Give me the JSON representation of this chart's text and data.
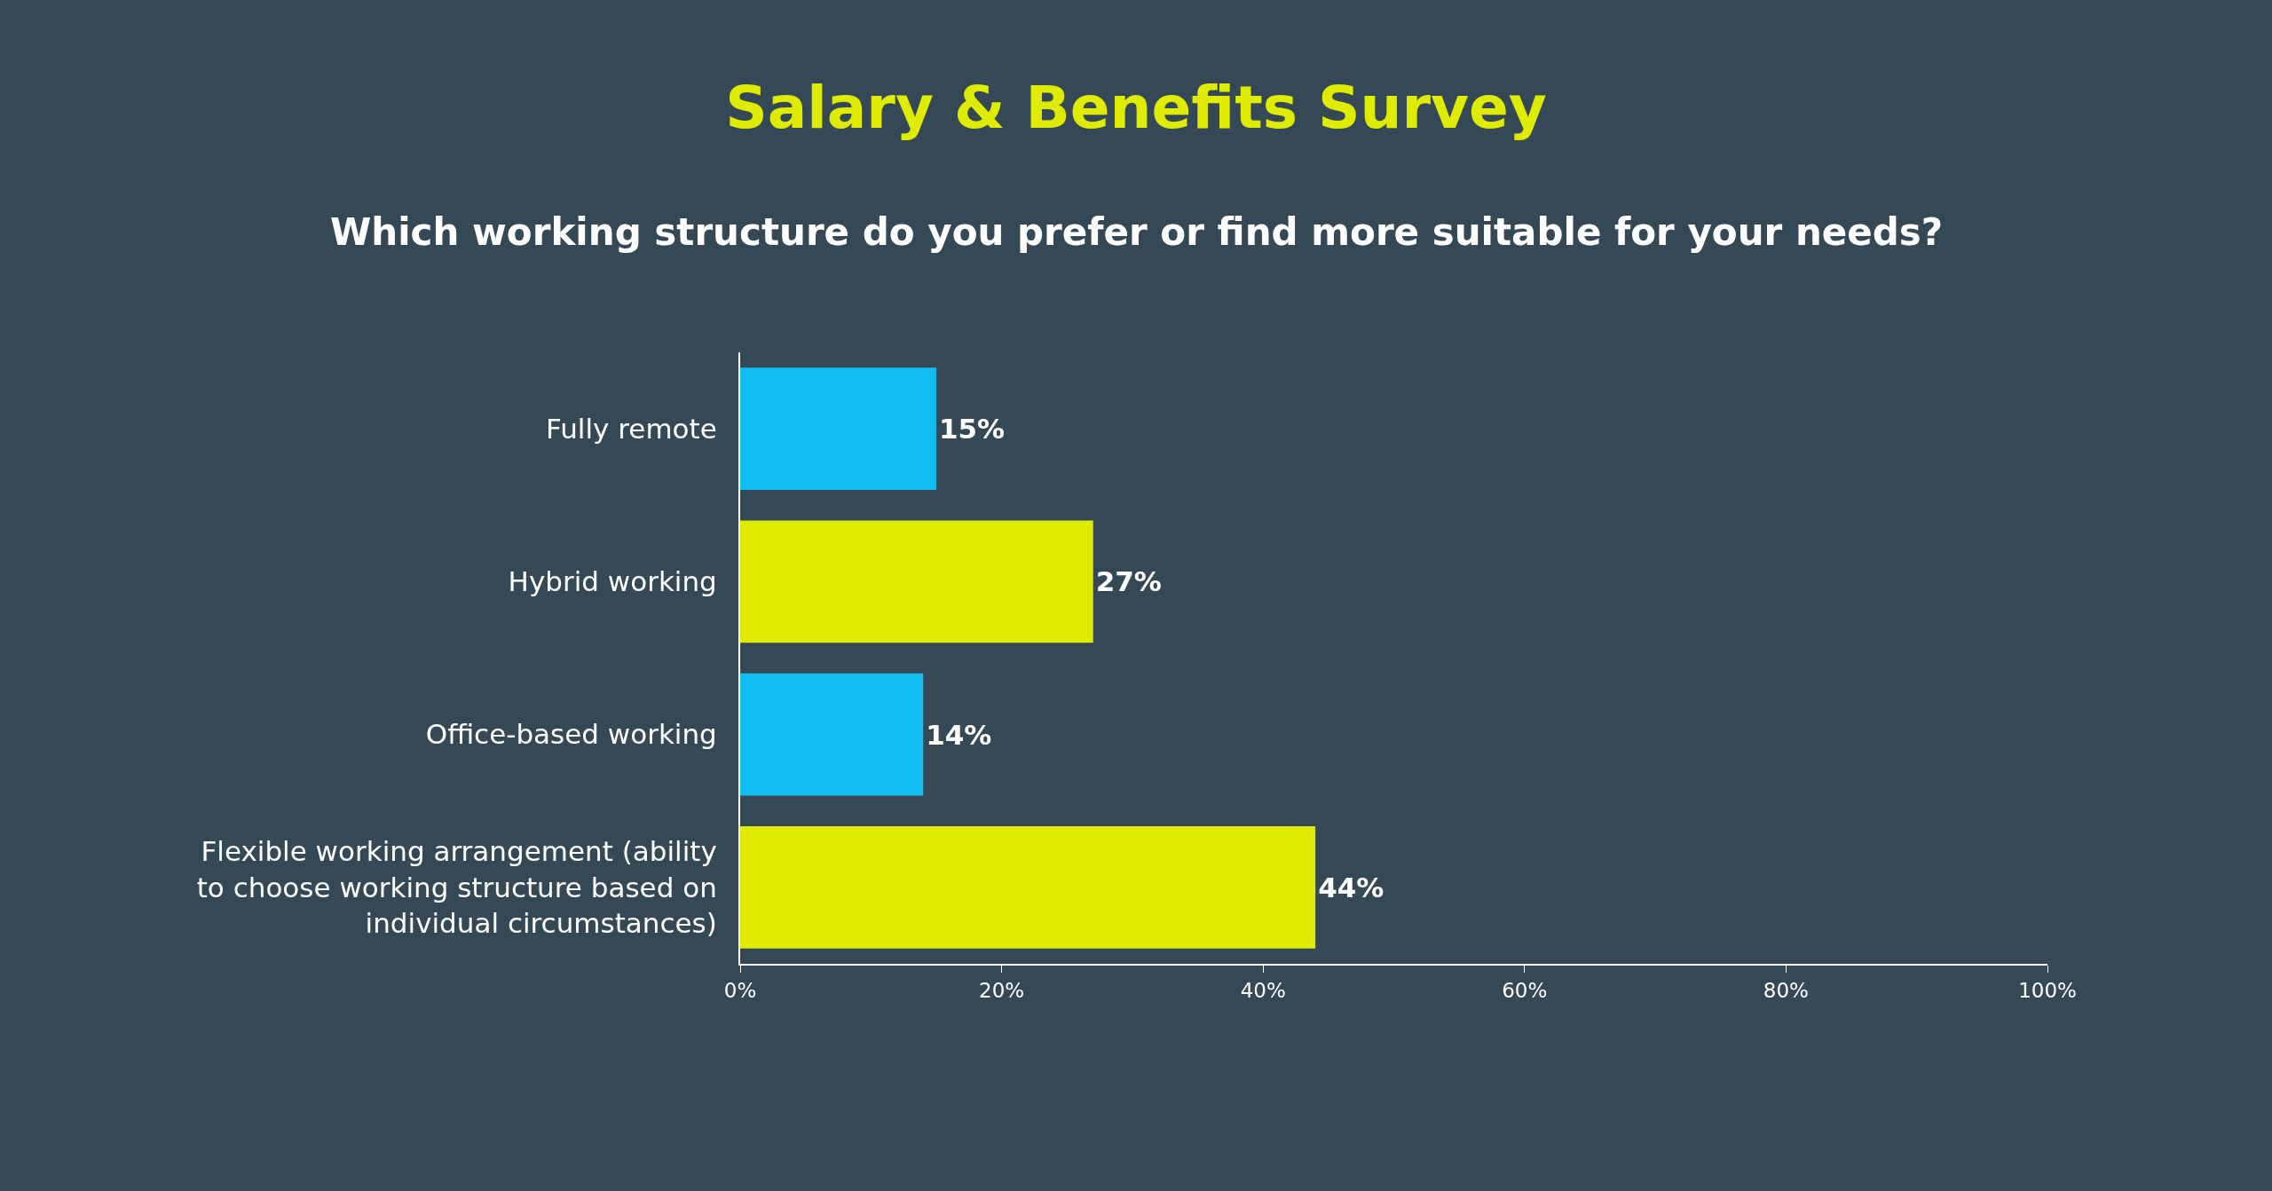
{
  "chart_data": {
    "type": "bar",
    "orientation": "horizontal",
    "title": "Salary & Benefits Survey",
    "subtitle": "Which working structure do you prefer or find more suitable for your needs?",
    "categories": [
      "Fully remote",
      "Hybrid working",
      "Office-based working",
      "Flexible working arrangement (ability to choose working structure based on individual circumstances)"
    ],
    "values": [
      15,
      27,
      14,
      44
    ],
    "colors": [
      "#12bef0",
      "#dfeb00",
      "#12bef0",
      "#dfeb00"
    ],
    "value_labels": [
      "15%",
      "27%",
      "14%",
      "44%"
    ],
    "xlim": [
      0,
      100
    ],
    "xticks": [
      {
        "value": 0,
        "label": "0%"
      },
      {
        "value": 20,
        "label": "20%"
      },
      {
        "value": 40,
        "label": "40%"
      },
      {
        "value": 60,
        "label": "60%"
      },
      {
        "value": 80,
        "label": "80%"
      },
      {
        "value": 100,
        "label": "100%"
      }
    ],
    "grid": false
  }
}
